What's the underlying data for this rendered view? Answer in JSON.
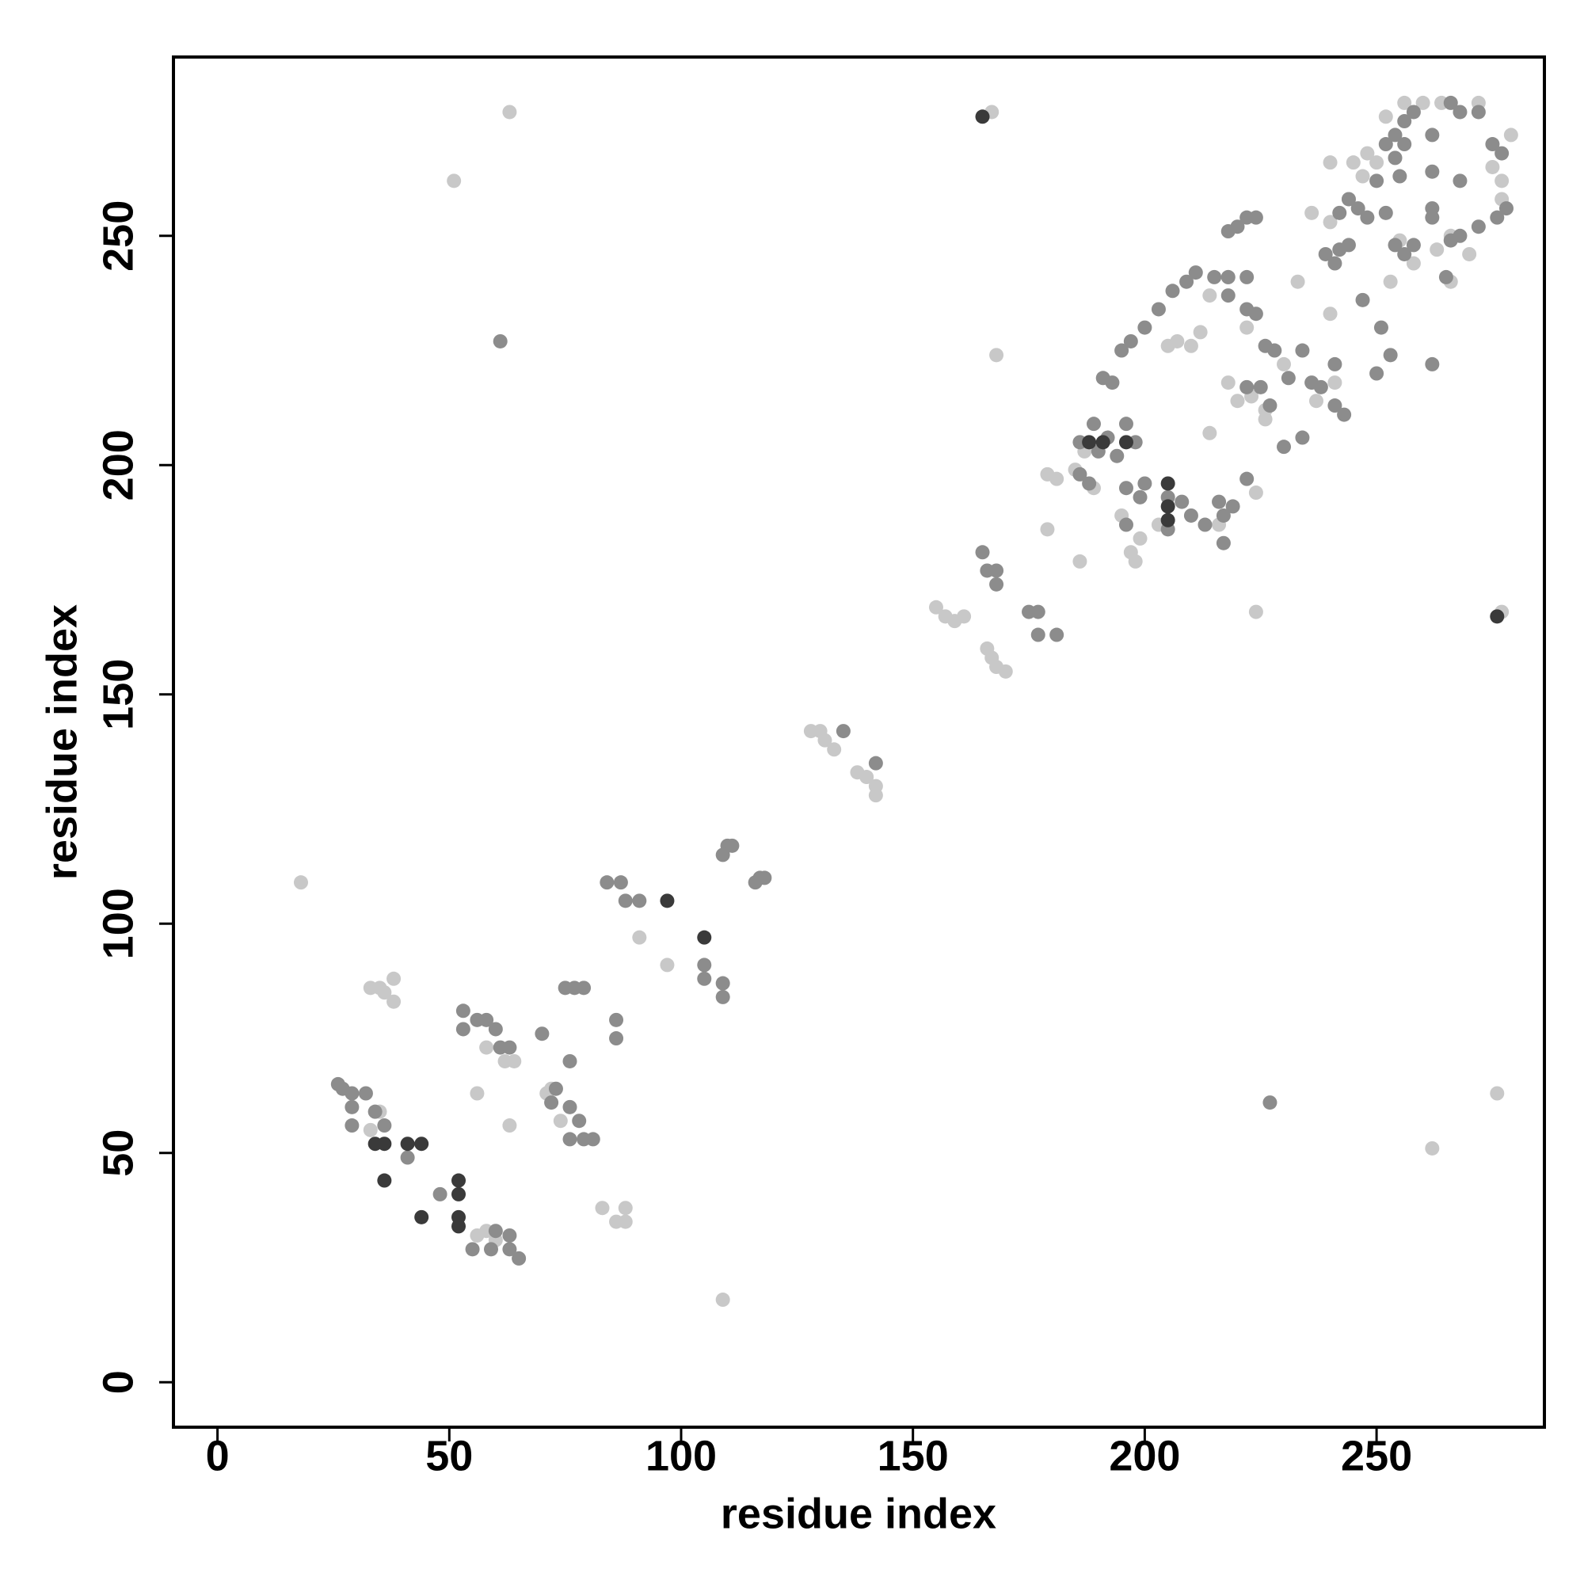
{
  "chart_data": {
    "type": "scatter",
    "x_label": "residue index",
    "y_label": "residue index",
    "xlim": [
      -9.5,
      286.2
    ],
    "ylim": [
      -9.8,
      289
    ],
    "xticks": [
      0,
      50,
      100,
      150,
      200,
      250
    ],
    "yticks": [
      0,
      50,
      100,
      150,
      200,
      250
    ],
    "series": [
      {
        "color": "#c8c8c8",
        "x": [
          18,
          109,
          51,
          262,
          63,
          167,
          168,
          224,
          277,
          276,
          33,
          35,
          38,
          38,
          36,
          33,
          35,
          56,
          58,
          62,
          64,
          63,
          71,
          72,
          74,
          83,
          86,
          88,
          88,
          91,
          97,
          56,
          58,
          60,
          65,
          128,
          130,
          131,
          133,
          138,
          140,
          142,
          142,
          155,
          157,
          159,
          161,
          166,
          167,
          168,
          170,
          179,
          179,
          186,
          198,
          181,
          185,
          187,
          189,
          195,
          197,
          199,
          203,
          205,
          207,
          210,
          226,
          214,
          216,
          218,
          220,
          223,
          226,
          224,
          222,
          230,
          212,
          214,
          218,
          237,
          241,
          233,
          240,
          236,
          240,
          244,
          247,
          250,
          255,
          258,
          263,
          266,
          266,
          272,
          275,
          277,
          279,
          277,
          270,
          260,
          264,
          252,
          256,
          248,
          245,
          240,
          253
        ],
        "values": [
          109,
          18,
          262,
          51,
          277,
          277,
          224,
          168,
          168,
          63,
          86,
          86,
          88,
          83,
          85,
          55,
          59,
          63,
          73,
          70,
          70,
          56,
          63,
          64,
          57,
          38,
          35,
          35,
          38,
          97,
          91,
          32,
          33,
          31,
          27,
          142,
          142,
          140,
          138,
          133,
          132,
          130,
          128,
          169,
          167,
          166,
          167,
          160,
          158,
          156,
          155,
          186,
          198,
          179,
          179,
          197,
          199,
          203,
          195,
          189,
          181,
          184,
          187,
          226,
          227,
          226,
          210,
          207,
          187,
          218,
          214,
          215,
          212,
          194,
          230,
          222,
          229,
          237,
          241,
          214,
          218,
          240,
          233,
          255,
          266,
          258,
          263,
          266,
          249,
          244,
          247,
          240,
          250,
          279,
          265,
          262,
          272,
          258,
          246,
          279,
          279,
          276,
          279,
          268,
          266,
          253,
          240
        ]
      },
      {
        "color": "#8c8c8c",
        "x": [
          26,
          27,
          29,
          29,
          29,
          32,
          34,
          36,
          41,
          48,
          55,
          59,
          60,
          63,
          63,
          65,
          53,
          53,
          56,
          58,
          60,
          61,
          63,
          75,
          77,
          79,
          73,
          72,
          76,
          78,
          79,
          76,
          81,
          76,
          70,
          84,
          87,
          88,
          91,
          86,
          86,
          105,
          105,
          109,
          109,
          110,
          109,
          111,
          117,
          116,
          118,
          135,
          142,
          227,
          61,
          165,
          166,
          168,
          168,
          175,
          177,
          177,
          181,
          186,
          188,
          189,
          190,
          191,
          192,
          193,
          195,
          197,
          200,
          203,
          206,
          209,
          211,
          196,
          196,
          199,
          205,
          208,
          210,
          213,
          216,
          217,
          219,
          215,
          218,
          218,
          222,
          224,
          218,
          220,
          222,
          224,
          222,
          226,
          228,
          231,
          222,
          225,
          227,
          234,
          236,
          238,
          241,
          243,
          234,
          241,
          242,
          244,
          247,
          250,
          253,
          251,
          241,
          239,
          242,
          244,
          246,
          248,
          250,
          255,
          252,
          254,
          256,
          258,
          262,
          262,
          266,
          268,
          272,
          275,
          277,
          278,
          276,
          272,
          268,
          266,
          262,
          262,
          258,
          256,
          254,
          252,
          254,
          256,
          262,
          268,
          265,
          217,
          222,
          230,
          194,
          196,
          198,
          200,
          205,
          186
        ],
        "values": [
          65,
          64,
          63,
          60,
          56,
          63,
          59,
          56,
          49,
          41,
          29,
          29,
          33,
          32,
          29,
          27,
          81,
          77,
          79,
          79,
          77,
          73,
          73,
          86,
          86,
          86,
          64,
          61,
          60,
          57,
          53,
          53,
          53,
          70,
          76,
          109,
          109,
          105,
          105,
          79,
          75,
          91,
          88,
          87,
          84,
          117,
          115,
          117,
          110,
          109,
          110,
          142,
          135,
          61,
          227,
          181,
          177,
          177,
          174,
          168,
          163,
          168,
          163,
          198,
          196,
          209,
          203,
          219,
          206,
          218,
          225,
          227,
          230,
          234,
          238,
          240,
          242,
          195,
          187,
          193,
          193,
          192,
          189,
          187,
          192,
          189,
          191,
          241,
          237,
          241,
          234,
          233,
          251,
          252,
          254,
          254,
          241,
          226,
          225,
          219,
          217,
          217,
          213,
          225,
          218,
          217,
          213,
          211,
          206,
          222,
          247,
          248,
          236,
          220,
          224,
          230,
          244,
          246,
          255,
          258,
          256,
          254,
          262,
          263,
          270,
          272,
          275,
          277,
          272,
          264,
          279,
          277,
          277,
          270,
          268,
          256,
          254,
          252,
          250,
          249,
          254,
          256,
          248,
          246,
          248,
          255,
          267,
          270,
          222,
          262,
          241,
          183,
          197,
          204,
          202,
          209,
          205,
          196,
          186,
          205
        ]
      },
      {
        "color": "#3a3a3a",
        "x": [
          41,
          44,
          52,
          52,
          44,
          36,
          36,
          34,
          52,
          52,
          97,
          105,
          205,
          196,
          188,
          205,
          191,
          205,
          165,
          276
        ],
        "values": [
          52,
          52,
          44,
          41,
          36,
          44,
          52,
          52,
          36,
          34,
          105,
          97,
          196,
          205,
          205,
          188,
          205,
          191,
          276,
          167
        ]
      }
    ]
  }
}
